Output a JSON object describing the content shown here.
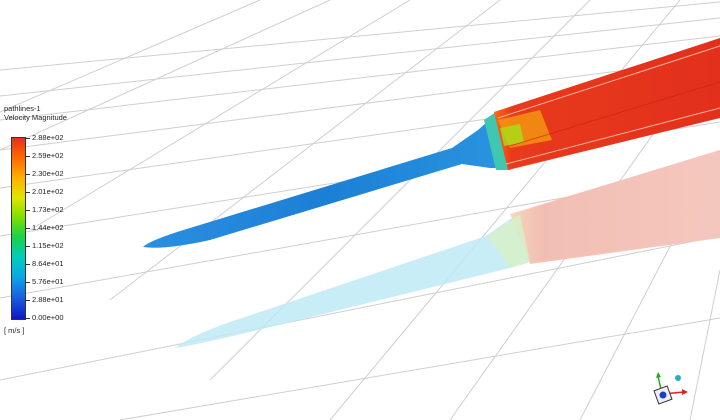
{
  "legend": {
    "title": "pathlines-1",
    "subtitle": "Velocity Magnitude",
    "ticks": [
      "2.88e+02",
      "2.59e+02",
      "2.30e+02",
      "2.01e+02",
      "1.73e+02",
      "1.44e+02",
      "1.15e+02",
      "8.64e+01",
      "5.76e+01",
      "2.88e+01",
      "0.00e+00"
    ],
    "units": "[ m/s ]"
  },
  "colors": {
    "grid": "#cfcfcf",
    "body_blue": "#1a83d8",
    "nozzle_red": "#e4341f",
    "reflection_blue": "#9fe0f0",
    "reflection_red": "#f7b4a6"
  },
  "triad": {
    "x_icon": "x-axis-arrow-icon",
    "y_icon": "y-axis-arrow-icon",
    "z_icon": "z-axis-arrow-icon"
  }
}
